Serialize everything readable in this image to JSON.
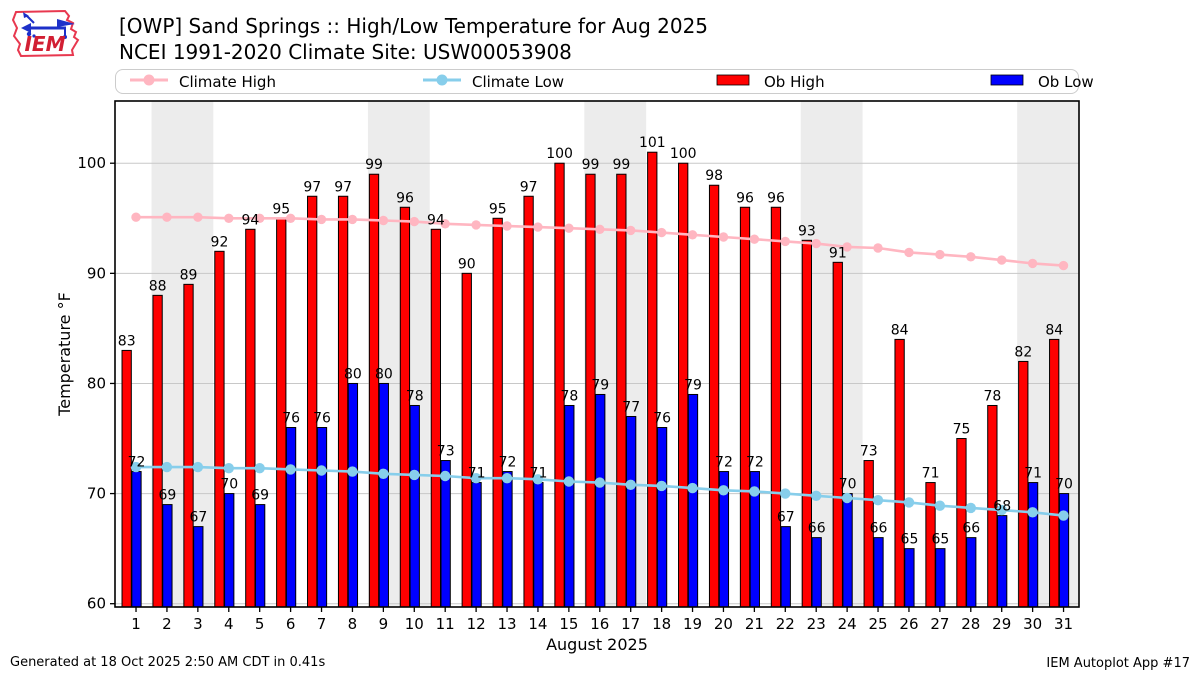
{
  "header": {
    "title_line1": "[OWP] Sand Springs :: High/Low Temperature for Aug 2025",
    "title_line2": "NCEI 1991-2020 Climate Site: USW00053908",
    "logo_text": "IEM"
  },
  "legend": {
    "items": [
      {
        "label": "Climate High",
        "type": "line",
        "color": "#ffb6c1"
      },
      {
        "label": "Climate Low",
        "type": "line",
        "color": "#87ceeb"
      },
      {
        "label": "Ob High",
        "type": "patch",
        "color": "#ff0000"
      },
      {
        "label": "Ob Low",
        "type": "patch",
        "color": "#0000ff"
      }
    ]
  },
  "chart_data": {
    "type": "bar",
    "title": "[OWP] Sand Springs :: High/Low Temperature for Aug 2025",
    "subtitle": "NCEI 1991-2020 Climate Site: USW00053908",
    "xlabel": "August 2025",
    "ylabel": "Temperature °F",
    "x": [
      1,
      2,
      3,
      4,
      5,
      6,
      7,
      8,
      9,
      10,
      11,
      12,
      13,
      14,
      15,
      16,
      17,
      18,
      19,
      20,
      21,
      22,
      23,
      24,
      25,
      26,
      27,
      28,
      29,
      30,
      31
    ],
    "series": [
      {
        "name": "Ob High",
        "type": "bar",
        "color": "#ff0000",
        "values": [
          83,
          88,
          89,
          92,
          94,
          95,
          97,
          97,
          99,
          96,
          94,
          90,
          95,
          97,
          100,
          99,
          99,
          101,
          100,
          98,
          96,
          96,
          93,
          91,
          73,
          84,
          71,
          75,
          78,
          82,
          84
        ]
      },
      {
        "name": "Ob Low",
        "type": "bar",
        "color": "#0000ff",
        "values": [
          72,
          69,
          67,
          70,
          69,
          76,
          76,
          80,
          80,
          78,
          73,
          71,
          72,
          71,
          78,
          79,
          77,
          76,
          79,
          72,
          72,
          67,
          66,
          70,
          66,
          65,
          65,
          66,
          68,
          71,
          70
        ]
      },
      {
        "name": "Climate High",
        "type": "line",
        "color": "#ffb6c1",
        "values": [
          95.1,
          95.1,
          95.1,
          95.0,
          95.0,
          95.0,
          94.9,
          94.9,
          94.8,
          94.7,
          94.5,
          94.4,
          94.3,
          94.2,
          94.1,
          94.0,
          93.9,
          93.7,
          93.5,
          93.3,
          93.1,
          92.9,
          92.7,
          92.4,
          92.3,
          91.9,
          91.7,
          91.5,
          91.2,
          90.9,
          90.7
        ]
      },
      {
        "name": "Climate Low",
        "type": "line",
        "color": "#87ceeb",
        "values": [
          72.4,
          72.4,
          72.4,
          72.3,
          72.3,
          72.2,
          72.1,
          72.0,
          71.8,
          71.7,
          71.6,
          71.4,
          71.4,
          71.3,
          71.1,
          71.0,
          70.8,
          70.7,
          70.5,
          70.3,
          70.2,
          70.0,
          69.8,
          69.6,
          69.4,
          69.2,
          68.9,
          68.7,
          68.5,
          68.3,
          68.0
        ]
      }
    ],
    "ylim": [
      59.7,
      105.65
    ],
    "xlim": [
      0.32,
      31.5
    ],
    "yticks": [
      60,
      70,
      80,
      90,
      100
    ],
    "weekend_bands": [
      [
        1.5,
        3.5
      ],
      [
        8.5,
        10.5
      ],
      [
        15.5,
        17.5
      ],
      [
        22.5,
        24.5
      ],
      [
        29.5,
        31.5
      ]
    ],
    "grid": "horizontal",
    "colors": {
      "band": "#ececec",
      "grid": "#c8c8c8",
      "frame": "#000000",
      "bar_edge": "#000000"
    }
  },
  "footer": {
    "generated": "Generated at 18 Oct 2025 2:50 AM CDT in 0.41s",
    "app": "IEM Autoplot App #17"
  }
}
